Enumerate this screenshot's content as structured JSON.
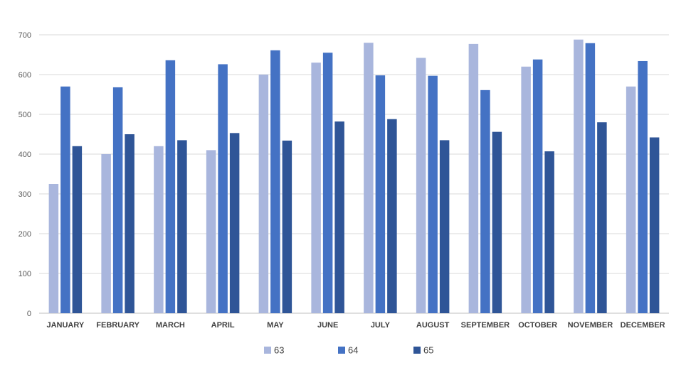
{
  "chart_data": {
    "type": "bar",
    "categories": [
      "JANUARY",
      "FEBRUARY",
      "MARCH",
      "APRIL",
      "MAY",
      "JUNE",
      "JULY",
      "AUGUST",
      "SEPTEMBER",
      "OCTOBER",
      "NOVEMBER",
      "DECEMBER"
    ],
    "series": [
      {
        "name": "63",
        "color": "#a9b6dd",
        "values": [
          325,
          400,
          420,
          410,
          600,
          630,
          680,
          642,
          677,
          620,
          688,
          570
        ]
      },
      {
        "name": "64",
        "color": "#4472c4",
        "values": [
          570,
          568,
          636,
          626,
          661,
          655,
          598,
          597,
          561,
          638,
          679,
          634
        ]
      },
      {
        "name": "65",
        "color": "#2f5597",
        "values": [
          420,
          450,
          435,
          453,
          434,
          482,
          488,
          435,
          456,
          407,
          480,
          442
        ]
      }
    ],
    "ylim": [
      0,
      700
    ],
    "yticks": [
      0,
      100,
      200,
      300,
      400,
      500,
      600,
      700
    ],
    "grid": true,
    "legend_position": "bottom",
    "title": "",
    "xlabel": "",
    "ylabel": ""
  }
}
